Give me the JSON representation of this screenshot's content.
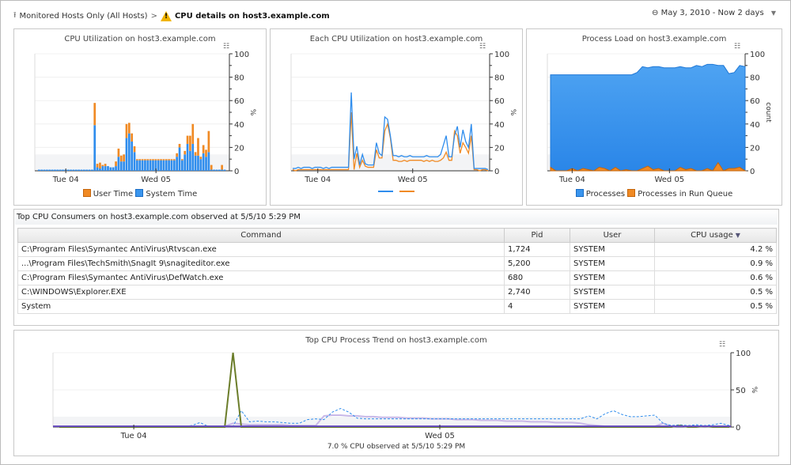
{
  "header": {
    "breadcrumb_parent": "Monitored Hosts Only (All Hosts)",
    "breadcrumb_current": "CPU details on host3.example.com",
    "time_range": "May 3, 2010 - Now 2 days"
  },
  "colors": {
    "user": "#f08a24",
    "system": "#2f8ded",
    "processes": "#3a95ee",
    "run_queue": "#f08a24",
    "cpu1": "#2f8ded",
    "cpu2": "#f08a24"
  },
  "charts": {
    "cpu": {
      "title": "CPU Utilization on host3.example.com",
      "ylabel": "%",
      "legend": [
        "User Time",
        "System Time"
      ]
    },
    "each": {
      "title": "Each CPU Utilization on host3.example.com",
      "ylabel": "%"
    },
    "load": {
      "title": "Process Load on host3.example.com",
      "ylabel": "count",
      "legend": [
        "Processes",
        "Processes in Run Queue"
      ]
    },
    "trend": {
      "title": "Top CPU Process Trend on host3.example.com",
      "ylabel": "%",
      "caption": "7.0 % CPU observed at 5/5/10 5:29 PM"
    }
  },
  "chart_data": [
    {
      "type": "bar",
      "stacked": true,
      "title": "CPU Utilization on host3.example.com",
      "ylabel": "%",
      "ylim": [
        0,
        100
      ],
      "yticks": [
        0,
        20,
        40,
        60,
        80,
        100
      ],
      "xticks": [
        {
          "label": "Tue 04",
          "at_index": 10
        },
        {
          "label": "Wed 05",
          "at_index": 44
        }
      ],
      "series": [
        {
          "name": "System Time",
          "values": [
            1,
            1,
            1,
            1,
            1,
            1,
            1,
            1,
            1,
            1,
            1,
            1,
            1,
            1,
            1,
            1,
            1,
            1,
            1,
            1,
            1,
            39,
            3,
            2,
            4,
            4,
            4,
            3,
            3,
            4,
            12,
            8,
            8,
            28,
            32,
            25,
            16,
            9,
            9,
            9,
            9,
            9,
            9,
            9,
            9,
            9,
            9,
            9,
            9,
            9,
            9,
            9,
            12,
            20,
            9,
            14,
            23,
            17,
            23,
            13,
            13,
            10,
            15,
            12,
            16,
            1,
            1,
            1,
            1,
            1,
            1
          ]
        },
        {
          "name": "User Time",
          "values": [
            0,
            0,
            0,
            0,
            0,
            0,
            0,
            0,
            0,
            0,
            0,
            0,
            0,
            0,
            0,
            0,
            0,
            0,
            0,
            0,
            0,
            19,
            3,
            5,
            1,
            2,
            0,
            0,
            0,
            4,
            7,
            5,
            6,
            12,
            9,
            7,
            5,
            1,
            1,
            1,
            1,
            1,
            1,
            1,
            1,
            1,
            1,
            1,
            1,
            1,
            1,
            1,
            3,
            3,
            1,
            3,
            7,
            13,
            17,
            3,
            15,
            2,
            7,
            6,
            18,
            4,
            0,
            0,
            0,
            4,
            0
          ]
        }
      ]
    },
    {
      "type": "line",
      "title": "Each CPU Utilization on host3.example.com",
      "ylabel": "%",
      "ylim": [
        0,
        100
      ],
      "yticks": [
        0,
        20,
        40,
        60,
        80,
        100
      ],
      "xticks": [
        {
          "label": "Tue 04",
          "at_index": 9
        },
        {
          "label": "Wed 05",
          "at_index": 43
        }
      ],
      "series": [
        {
          "values": [
            2,
            2,
            3,
            2,
            3,
            3,
            3,
            2,
            3,
            3,
            3,
            2,
            3,
            2,
            3,
            3,
            3,
            3,
            3,
            3,
            3,
            67,
            10,
            21,
            5,
            14,
            6,
            5,
            5,
            5,
            24,
            15,
            13,
            46,
            44,
            30,
            13,
            13,
            12,
            13,
            12,
            12,
            13,
            12,
            12,
            12,
            12,
            12,
            13,
            12,
            12,
            12,
            12,
            14,
            22,
            30,
            12,
            12,
            30,
            38,
            20,
            35,
            25,
            20,
            40,
            2,
            2,
            2,
            2,
            2,
            1
          ]
        },
        {
          "values": [
            1,
            0,
            1,
            1,
            1,
            1,
            1,
            1,
            1,
            1,
            1,
            1,
            1,
            1,
            1,
            1,
            1,
            1,
            1,
            1,
            1,
            50,
            1,
            15,
            3,
            9,
            4,
            3,
            3,
            3,
            18,
            11,
            11,
            34,
            40,
            28,
            9,
            9,
            8,
            8,
            9,
            8,
            9,
            9,
            9,
            9,
            9,
            8,
            9,
            8,
            9,
            8,
            8,
            9,
            11,
            16,
            9,
            9,
            34,
            30,
            15,
            24,
            20,
            15,
            30,
            1,
            1,
            0,
            1,
            1,
            0
          ]
        }
      ]
    },
    {
      "type": "area",
      "title": "Process Load on host3.example.com",
      "ylabel": "count",
      "ylim": [
        0,
        100
      ],
      "yticks": [
        0,
        20,
        40,
        60,
        80,
        100
      ],
      "xticks": [
        {
          "label": "Tue 04",
          "at_index": 4
        },
        {
          "label": "Wed 05",
          "at_index": 22
        }
      ],
      "series": [
        {
          "name": "Processes",
          "values": [
            82,
            82,
            82,
            82,
            82,
            82,
            82,
            82,
            82,
            82,
            82,
            82,
            82,
            82,
            82,
            82,
            84,
            89,
            88,
            89,
            89,
            88,
            88,
            88,
            89,
            88,
            88,
            90,
            89,
            91,
            91,
            90,
            90,
            83,
            84,
            90,
            89
          ]
        },
        {
          "name": "Processes in Run Queue",
          "values": [
            3,
            0,
            0,
            0,
            2,
            0,
            2,
            1,
            0,
            3,
            2,
            0,
            3,
            0,
            1,
            0,
            0,
            2,
            4,
            1,
            2,
            0,
            0,
            0,
            3,
            1,
            2,
            0,
            0,
            2,
            0,
            7,
            0,
            2,
            2,
            3,
            0
          ]
        }
      ]
    },
    {
      "type": "line",
      "title": "Top CPU Process Trend on host3.example.com",
      "ylabel": "%",
      "ylim": [
        0,
        100
      ],
      "yticks": [
        0,
        50,
        100
      ],
      "xticks": [
        {
          "label": "Tue 04",
          "at_index": 9
        },
        {
          "label": "Wed 05",
          "at_index": 46
        }
      ],
      "series": [
        {
          "values": [
            1,
            1,
            1,
            1,
            1,
            1,
            1,
            1,
            1,
            1,
            1,
            1,
            1,
            1,
            1,
            1,
            2,
            6,
            1,
            1,
            1,
            1,
            22,
            7,
            8,
            7,
            7,
            6,
            5,
            5,
            10,
            11,
            10,
            20,
            25,
            20,
            12,
            11,
            11,
            11,
            11,
            11,
            11,
            11,
            11,
            11,
            11,
            11,
            11,
            11,
            11,
            11,
            11,
            11,
            11,
            11,
            11,
            11,
            11,
            11,
            11,
            11,
            11,
            11,
            15,
            11,
            18,
            22,
            17,
            14,
            14,
            15,
            16,
            5,
            2,
            3,
            2,
            3,
            2,
            3,
            5,
            2
          ]
        },
        {
          "values": [
            0,
            0,
            0,
            0,
            0,
            0,
            0,
            0,
            0,
            0,
            0,
            0,
            0,
            0,
            0,
            0,
            0,
            0,
            0,
            0,
            0,
            100,
            0,
            0,
            0,
            0,
            0,
            0,
            0,
            0,
            0,
            0,
            0,
            0,
            0,
            0,
            0,
            0,
            0,
            0,
            0,
            0,
            0,
            0,
            0,
            0,
            0,
            0,
            0,
            0,
            0,
            0,
            0,
            0,
            0,
            0,
            0,
            0,
            0,
            0,
            0,
            0,
            0,
            0,
            0,
            0,
            0,
            0,
            0,
            0,
            0,
            0,
            0,
            0,
            0,
            2,
            0,
            0,
            1,
            0,
            0,
            0
          ]
        },
        {
          "values": [
            1,
            1,
            1,
            1,
            1,
            1,
            1,
            1,
            1,
            1,
            1,
            1,
            1,
            1,
            1,
            1,
            1,
            1,
            1,
            1,
            1,
            5,
            4,
            3,
            3,
            3,
            3,
            3,
            2,
            2,
            2,
            2,
            15,
            16,
            16,
            15,
            15,
            14,
            14,
            13,
            13,
            13,
            12,
            12,
            12,
            11,
            11,
            11,
            10,
            10,
            10,
            9,
            9,
            9,
            8,
            8,
            8,
            7,
            7,
            7,
            6,
            6,
            6,
            5,
            3,
            2,
            1,
            1,
            1,
            1,
            1,
            1,
            1,
            5,
            1,
            1,
            1,
            1,
            1,
            1,
            1,
            1
          ]
        }
      ]
    }
  ],
  "table": {
    "title": "Top CPU Consumers on host3.example.com observed at 5/5/10 5:29 PM",
    "columns": [
      "Command",
      "Pid",
      "User",
      "CPU usage"
    ],
    "rows": [
      [
        "C:\\Program Files\\Symantec AntiVirus\\Rtvscan.exe",
        "1,724",
        "SYSTEM",
        "4.2 %"
      ],
      [
        "...\\Program Files\\TechSmith\\SnagIt 9\\snagiteditor.exe",
        "5,200",
        "SYSTEM",
        "0.9 %"
      ],
      [
        "C:\\Program Files\\Symantec AntiVirus\\DefWatch.exe",
        "680",
        "SYSTEM",
        "0.6 %"
      ],
      [
        "C:\\WINDOWS\\Explorer.EXE",
        "2,740",
        "SYSTEM",
        "0.5 %"
      ],
      [
        "System",
        "4",
        "SYSTEM",
        "0.5 %"
      ]
    ]
  }
}
